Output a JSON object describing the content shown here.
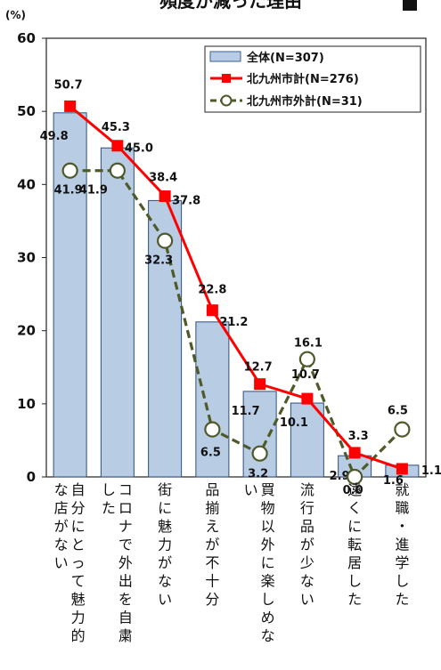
{
  "chart_data": {
    "type": "bar",
    "title": "頻度が減った理由",
    "unit_label": "(%)",
    "ylim": [
      0,
      60
    ],
    "yticks": [
      0,
      10,
      20,
      30,
      40,
      50,
      60
    ],
    "grid": false,
    "legend_position": "top-right",
    "categories": [
      "自分にとって魅力的な店がない",
      "コロナで外出を自粛した",
      "街に魅力がない",
      "品揃えが不十分",
      "買物以外に楽しめない",
      "流行品が少ない",
      "遠くに転居した",
      "就職・進学した"
    ],
    "category_columns": [
      [
        "自分にとって魅力的",
        "な店がない"
      ],
      [
        "コロナで外出を自粛",
        "した"
      ],
      [
        "街に魅力がない"
      ],
      [
        "品揃えが不十分"
      ],
      [
        "買物以外に楽しめな",
        "い"
      ],
      [
        "流行品が少ない"
      ],
      [
        "遠くに転居した"
      ],
      [
        "就職・進学した"
      ]
    ],
    "series": [
      {
        "name": "全体(N=307)",
        "kind": "bar",
        "color": "#b8cce4",
        "values": [
          49.8,
          45.0,
          37.8,
          21.2,
          11.7,
          10.1,
          2.9,
          1.6
        ]
      },
      {
        "name": "北九州市計(N=276)",
        "kind": "line",
        "color": "#ff0000",
        "values": [
          50.7,
          45.3,
          38.4,
          22.8,
          12.7,
          10.7,
          3.3,
          1.1
        ]
      },
      {
        "name": "北九州市外計(N=31)",
        "kind": "line-dashed",
        "color": "#4f5a2a",
        "values": [
          41.9,
          41.9,
          32.3,
          6.5,
          3.2,
          16.1,
          0.0,
          6.5
        ]
      }
    ],
    "data_labels": {
      "bar": [
        "49.8",
        "45.0",
        "37.8",
        "21.2",
        "11.7",
        "10.1",
        "2.9",
        "1.6"
      ],
      "line_in": [
        "50.7",
        "45.3",
        "38.4",
        "22.8",
        "12.7",
        "10.7",
        "3.3",
        "1.1"
      ],
      "line_out": [
        "41.9",
        "41.9",
        "32.3",
        "6.5",
        "3.2",
        "16.1",
        "0.0",
        "6.5"
      ]
    }
  }
}
